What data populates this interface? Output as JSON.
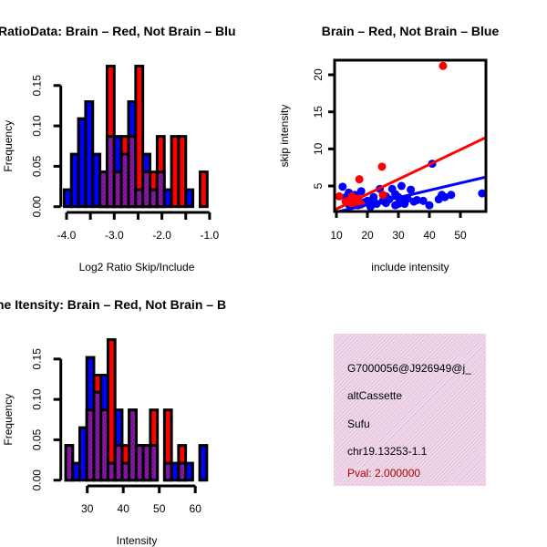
{
  "colors": {
    "red": "#ff0000",
    "blue": "#0000ff",
    "overlap": "#8b1aa8",
    "pval": "#b00000"
  },
  "chart_data": [
    {
      "type": "bar",
      "title": "RatioData: Brain – Red, Not Brain – Blu",
      "xlabel": "Log2 Ratio Skip/Include",
      "ylabel": "Frequency",
      "bin_start": -4.05,
      "bin_width": 0.15,
      "xticks": [
        "-4.0",
        "-3.0",
        "-2.0",
        "-1.0"
      ],
      "xtick_values": [
        -4.0,
        -3.5,
        -3.0,
        -2.5,
        -2.0,
        -1.5,
        -1.0
      ],
      "yticks": [
        "0.00",
        "0.05",
        "0.10",
        "0.15"
      ],
      "ylim": [
        0,
        0.18
      ],
      "series": [
        {
          "name": "Brain",
          "color": "red",
          "values": [
            0,
            0,
            0,
            0,
            0,
            0.043,
            0.174,
            0.043,
            0.087,
            0.087,
            0.174,
            0.043,
            0.043,
            0.087,
            0,
            0.087,
            0.087,
            0,
            0,
            0.043
          ]
        },
        {
          "name": "Not Brain",
          "color": "blue",
          "values": [
            0.021,
            0.065,
            0.109,
            0.13,
            0.065,
            0.043,
            0.087,
            0.087,
            0.065,
            0.13,
            0.021,
            0.065,
            0.021,
            0.043,
            0.021,
            0,
            0,
            0.021,
            0,
            0
          ]
        }
      ]
    },
    {
      "type": "scatter",
      "title": "Brain – Red, Not Brain – Blue",
      "xlabel": "include intensity",
      "ylabel": "skip intensity",
      "xticks": [
        "10",
        "20",
        "30",
        "40",
        "50"
      ],
      "yticks": [
        "5",
        "10",
        "15",
        "20"
      ],
      "xlim": [
        9.4,
        58.2
      ],
      "ylim": [
        1.5,
        22
      ],
      "series": [
        {
          "name": "Brain",
          "color": "red",
          "points": [
            [
              44.4,
              21.2
            ],
            [
              24.7,
              7.6
            ],
            [
              17.4,
              5.9
            ],
            [
              10.9,
              3.6
            ],
            [
              14,
              3.0
            ],
            [
              15,
              2.6
            ],
            [
              16,
              2.8
            ],
            [
              17,
              3.3
            ],
            [
              18,
              2.5
            ],
            [
              25,
              3.8
            ],
            [
              15,
              3.6
            ],
            [
              13,
              2.9
            ]
          ],
          "fit": {
            "intercept": -0.1,
            "slope": 0.2
          }
        },
        {
          "name": "Not Brain",
          "color": "blue",
          "points": [
            [
              12,
              4.9
            ],
            [
              13,
              3.5
            ],
            [
              14,
              2.5
            ],
            [
              15,
              3.0
            ],
            [
              16,
              3.8
            ],
            [
              17,
              2.4
            ],
            [
              18,
              4.3
            ],
            [
              19,
              2.8
            ],
            [
              20,
              3.0
            ],
            [
              21,
              2.2
            ],
            [
              22,
              3.5
            ],
            [
              23,
              2.6
            ],
            [
              24,
              4.6
            ],
            [
              25,
              3.0
            ],
            [
              26,
              2.7
            ],
            [
              27,
              3.2
            ],
            [
              28,
              4.6
            ],
            [
              29,
              2.4
            ],
            [
              30,
              3.5
            ],
            [
              31,
              5.0
            ],
            [
              32,
              2.6
            ],
            [
              33,
              3.3
            ],
            [
              34,
              4.5
            ],
            [
              35,
              2.9
            ],
            [
              36,
              3.1
            ],
            [
              40,
              2.4
            ],
            [
              40.9,
              8.0
            ],
            [
              43,
              3.2
            ],
            [
              44,
              3.8
            ],
            [
              45,
              3.5
            ],
            [
              47,
              3.8
            ],
            [
              57,
              4.0
            ],
            [
              38,
              3.0
            ],
            [
              30,
              2.6
            ],
            [
              31,
              3.1
            ],
            [
              29,
              3.9
            ],
            [
              26,
              3.6
            ],
            [
              22,
              2.9
            ],
            [
              18,
              2.6
            ],
            [
              14,
              4.1
            ]
          ],
          "fit": {
            "intercept": 0.5,
            "slope": 0.098
          }
        }
      ]
    },
    {
      "type": "bar",
      "title": "ne Itensity: Brain – Red, Not Brain – B",
      "xlabel": "Intensity",
      "ylabel": "Frequency",
      "bin_start": 24.0,
      "bin_width": 1.96,
      "xticks": [
        "30",
        "40",
        "50",
        "60"
      ],
      "xtick_values": [
        30,
        40,
        50,
        60
      ],
      "yticks": [
        "0.00",
        "0.05",
        "0.10",
        "0.15"
      ],
      "ylim": [
        0,
        0.18
      ],
      "series": [
        {
          "name": "Brain",
          "color": "red",
          "values": [
            0.043,
            0,
            0,
            0.087,
            0.13,
            0.087,
            0.174,
            0.043,
            0.043,
            0.087,
            0.043,
            0.043,
            0.087,
            0,
            0.087,
            0,
            0.043,
            0,
            0,
            0
          ]
        },
        {
          "name": "Not Brain",
          "color": "blue",
          "values": [
            0.043,
            0.021,
            0.065,
            0.152,
            0.109,
            0.13,
            0.021,
            0.087,
            0.021,
            0.087,
            0.043,
            0.043,
            0.043,
            0,
            0.021,
            0.021,
            0.021,
            0.021,
            0,
            0.043
          ]
        }
      ]
    }
  ],
  "info": {
    "id": "G7000056@J926949@j_",
    "type": "altCassette",
    "gene": "Sufu",
    "location": "chr19.13253-1.1",
    "pval": "Pval: 2.000000"
  }
}
